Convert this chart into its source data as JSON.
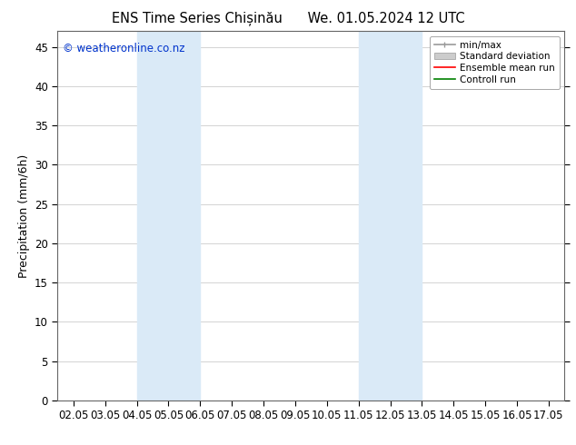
{
  "title_left": "ENS Time Series Chișinău",
  "title_right": "We. 01.05.2024 12 UTC",
  "ylabel": "Precipitation (mm/6h)",
  "xlabel": "",
  "xlim": [
    1.5,
    17.5
  ],
  "ylim": [
    0,
    47
  ],
  "yticks": [
    0,
    5,
    10,
    15,
    20,
    25,
    30,
    35,
    40,
    45
  ],
  "xtick_labels": [
    "02.05",
    "03.05",
    "04.05",
    "05.05",
    "06.05",
    "07.05",
    "08.05",
    "09.05",
    "10.05",
    "11.05",
    "12.05",
    "13.05",
    "14.05",
    "15.05",
    "16.05",
    "17.05"
  ],
  "xtick_positions": [
    2,
    3,
    4,
    5,
    6,
    7,
    8,
    9,
    10,
    11,
    12,
    13,
    14,
    15,
    16,
    17
  ],
  "shaded_regions": [
    {
      "xmin": 4.0,
      "xmax": 6.0,
      "color": "#daeaf7"
    },
    {
      "xmin": 11.0,
      "xmax": 13.0,
      "color": "#daeaf7"
    }
  ],
  "background_color": "#ffffff",
  "plot_bg_color": "#ffffff",
  "grid_color": "#cccccc",
  "watermark_text": "© weatheronline.co.nz",
  "watermark_color": "#0033cc",
  "legend_entries": [
    {
      "label": "min/max",
      "color": "#999999",
      "lw": 1.2,
      "ls": "-"
    },
    {
      "label": "Standard deviation",
      "color": "#cccccc",
      "lw": 6,
      "ls": "-"
    },
    {
      "label": "Ensemble mean run",
      "color": "#ff0000",
      "lw": 1.2,
      "ls": "-"
    },
    {
      "label": "Controll run",
      "color": "#008000",
      "lw": 1.2,
      "ls": "-"
    }
  ],
  "title_fontsize": 10.5,
  "tick_fontsize": 8.5,
  "ylabel_fontsize": 9,
  "watermark_fontsize": 8.5,
  "legend_fontsize": 7.5
}
